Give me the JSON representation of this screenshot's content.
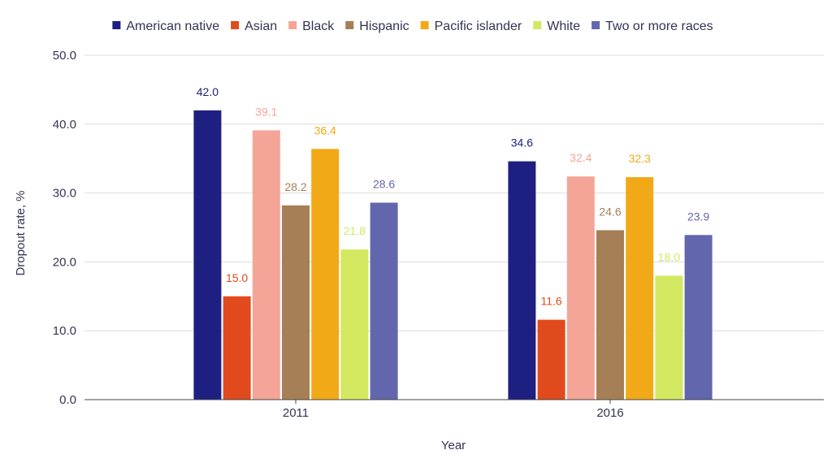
{
  "chart_data": {
    "type": "bar",
    "title": "",
    "xlabel": "Year",
    "ylabel": "Dropout rate, %",
    "categories": [
      "2011",
      "2016"
    ],
    "ylim": [
      0,
      50
    ],
    "yticks": [
      0,
      10,
      20,
      30,
      40,
      50
    ],
    "ytick_labels": [
      "0.0",
      "10.0",
      "20.0",
      "30.0",
      "40.0",
      "50.0"
    ],
    "grid": true,
    "legend_position": "top",
    "series": [
      {
        "name": "American native",
        "color": "#1e2081",
        "values": [
          42.0,
          34.6
        ],
        "labels": [
          "42.0",
          "34.6"
        ]
      },
      {
        "name": "Asian",
        "color": "#e14a1c",
        "values": [
          15.0,
          11.6
        ],
        "labels": [
          "15.0",
          "11.6"
        ]
      },
      {
        "name": "Black",
        "color": "#f4a598",
        "values": [
          39.1,
          32.4
        ],
        "labels": [
          "39.1",
          "32.4"
        ]
      },
      {
        "name": "Hispanic",
        "color": "#a67f56",
        "values": [
          28.2,
          24.6
        ],
        "labels": [
          "28.2",
          "24.6"
        ]
      },
      {
        "name": "Pacific islander",
        "color": "#f2a917",
        "values": [
          36.4,
          32.3
        ],
        "labels": [
          "36.4",
          "32.3"
        ]
      },
      {
        "name": "White",
        "color": "#d3e860",
        "values": [
          21.8,
          18.0
        ],
        "labels": [
          "21.8",
          "18.0"
        ]
      },
      {
        "name": "Two or more races",
        "color": "#6266ac",
        "values": [
          28.6,
          23.9
        ],
        "labels": [
          "28.6",
          "23.9"
        ]
      }
    ]
  },
  "style": {
    "axis_text_color": "#333355",
    "grid_color": "#dddddd",
    "axis_line_color": "#444444"
  }
}
